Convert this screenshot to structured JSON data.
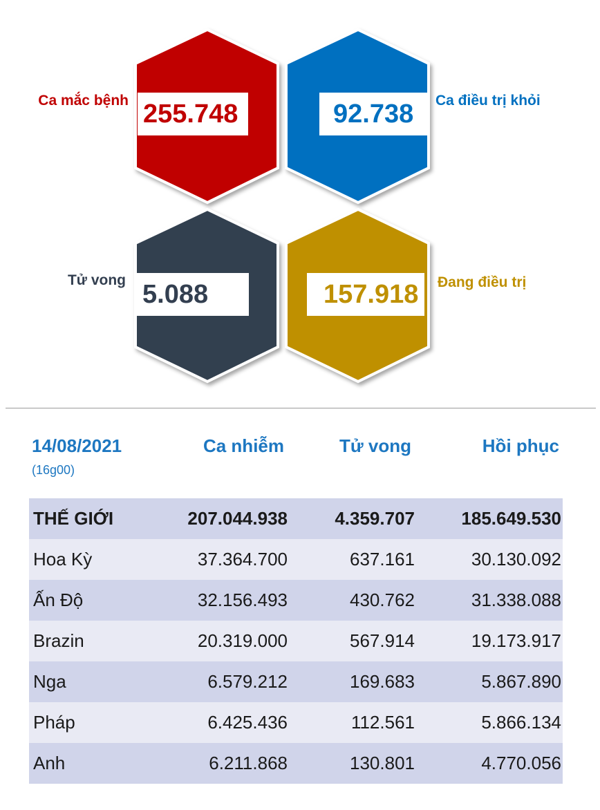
{
  "colors": {
    "cases": "#c00000",
    "recovered": "#0070c0",
    "deaths": "#333f50",
    "treating": "#bf9000",
    "header_blue": "#1d77c1",
    "row_shade": "#d0d4ea"
  },
  "stats": {
    "cases": {
      "label": "Ca mắc bệnh",
      "value": "255.748"
    },
    "recovered": {
      "label": "Ca điều trị khỏi",
      "value": "92.738"
    },
    "deaths": {
      "label": "Tử vong",
      "value": "5.088"
    },
    "treating": {
      "label": "Đang điều trị",
      "value": "157.918"
    }
  },
  "table": {
    "date": "14/08/2021",
    "time": "(16g00)",
    "columns": [
      "Ca nhiễm",
      "Tử vong",
      "Hồi phục"
    ],
    "rows": [
      {
        "name": "THẾ GIỚI",
        "cases": "207.044.938",
        "deaths": "4.359.707",
        "recovered": "185.649.530"
      },
      {
        "name": "Hoa Kỳ",
        "cases": "37.364.700",
        "deaths": "637.161",
        "recovered": "30.130.092"
      },
      {
        "name": "Ấn Độ",
        "cases": "32.156.493",
        "deaths": "430.762",
        "recovered": "31.338.088"
      },
      {
        "name": "Brazin",
        "cases": "20.319.000",
        "deaths": "567.914",
        "recovered": "19.173.917"
      },
      {
        "name": "Nga",
        "cases": "6.579.212",
        "deaths": "169.683",
        "recovered": "5.867.890"
      },
      {
        "name": "Pháp",
        "cases": "6.425.436",
        "deaths": "112.561",
        "recovered": "5.866.134"
      },
      {
        "name": "Anh",
        "cases": "6.211.868",
        "deaths": "130.801",
        "recovered": "4.770.056"
      }
    ]
  }
}
